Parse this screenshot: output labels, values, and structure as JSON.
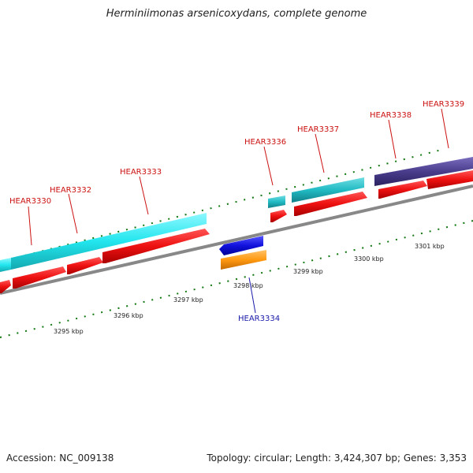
{
  "title": "Herminiimonas arsenicoxydans, complete genome",
  "footer": {
    "accession": "Accession: NC_009138",
    "summary": "Topology: circular; Length: 3,424,307 bp; Genes: 3,353"
  },
  "colors": {
    "cds": "#ee1111",
    "gene_cyan": "#22e6ee",
    "gene_teal": "#22bbc4",
    "gene_purple": "#4a3d8c",
    "gene_blue": "#1111dd",
    "gene_orange": "#ff9911",
    "backbone": "#888888",
    "ticks": "#117711",
    "label_red": "#cc1111",
    "label_blue": "#1a1aaa"
  },
  "scale_labels": [
    "3295 kbp",
    "3296 kbp",
    "3297 kbp",
    "3298 kbp",
    "3299 kbp",
    "3300 kbp",
    "3301 kbp"
  ],
  "gene_labels": [
    {
      "name": "HEAR3330",
      "strand": "forward"
    },
    {
      "name": "HEAR3332",
      "strand": "forward"
    },
    {
      "name": "HEAR3333",
      "strand": "forward"
    },
    {
      "name": "HEAR3336",
      "strand": "forward"
    },
    {
      "name": "HEAR3337",
      "strand": "forward"
    },
    {
      "name": "HEAR3338",
      "strand": "forward"
    },
    {
      "name": "HEAR3339",
      "strand": "forward"
    },
    {
      "name": "HEAR3334",
      "strand": "reverse"
    }
  ]
}
